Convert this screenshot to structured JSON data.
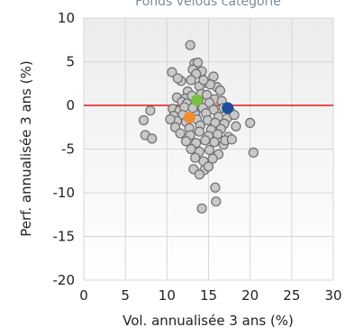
{
  "chart_data": {
    "type": "scatter",
    "title": "Fonds vélous catégorie",
    "xlabel": "Vol. annualisée 3 ans (%)",
    "ylabel": "Perf. annualisée 3 ans (%)",
    "xlim": [
      0,
      30
    ],
    "ylim": [
      -20,
      10
    ],
    "xticks": [
      "0",
      "5",
      "10",
      "15",
      "20",
      "25",
      "30"
    ],
    "yticks": [
      "-20",
      "-15",
      "-10",
      "-5",
      "0",
      "5",
      "10"
    ],
    "grid": true,
    "reference_line": {
      "y": 0,
      "color": "#e8141d"
    },
    "colors": {
      "category_points": "#c8c8c8",
      "category_outline": "#6e6e6e",
      "highlight_green": "#7ac143",
      "highlight_blue": "#1f4e9c",
      "highlight_orange": "#f28a2e"
    },
    "series": [
      {
        "color": "#c8c8c8",
        "points": [
          [
            12.8,
            6.9
          ],
          [
            13.3,
            4.8
          ],
          [
            13.7,
            4.9
          ],
          [
            13.1,
            4.1
          ],
          [
            14.2,
            3.9
          ],
          [
            13.5,
            3.6
          ],
          [
            15.6,
            3.3
          ],
          [
            11.7,
            2.8
          ],
          [
            12.9,
            2.9
          ],
          [
            14.6,
            2.6
          ],
          [
            16.0,
            2.1
          ],
          [
            10.6,
            3.8
          ],
          [
            11.3,
            3.1
          ],
          [
            13.9,
            2.2
          ],
          [
            15.2,
            2.4
          ],
          [
            12.5,
            1.6
          ],
          [
            14.1,
            1.3
          ],
          [
            16.4,
            1.7
          ],
          [
            11.2,
            0.9
          ],
          [
            12.2,
            0.8
          ],
          [
            13.0,
            1.1
          ],
          [
            13.8,
            0.6
          ],
          [
            14.8,
            1.2
          ],
          [
            15.7,
            0.7
          ],
          [
            16.6,
            0.5
          ],
          [
            11.8,
            0.4
          ],
          [
            12.4,
            0.2
          ],
          [
            15.1,
            0.3
          ],
          [
            10.7,
            -0.4
          ],
          [
            11.5,
            -0.6
          ],
          [
            12.1,
            -0.2
          ],
          [
            14.3,
            -0.3
          ],
          [
            15.6,
            -0.5
          ],
          [
            16.8,
            -0.3
          ],
          [
            17.6,
            -0.7
          ],
          [
            10.8,
            -1.2
          ],
          [
            11.9,
            -1.1
          ],
          [
            13.4,
            -1.0
          ],
          [
            14.7,
            -0.9
          ],
          [
            16.2,
            -1.3
          ],
          [
            17.2,
            -1.5
          ],
          [
            18.1,
            -1.1
          ],
          [
            11.2,
            -1.8
          ],
          [
            12.3,
            -1.9
          ],
          [
            13.6,
            -1.6
          ],
          [
            14.9,
            -1.7
          ],
          [
            15.8,
            -2.0
          ],
          [
            16.9,
            -2.1
          ],
          [
            18.3,
            -2.4
          ],
          [
            11.0,
            -2.5
          ],
          [
            12.7,
            -2.6
          ],
          [
            14.0,
            -2.3
          ],
          [
            15.3,
            -2.8
          ],
          [
            16.5,
            -2.7
          ],
          [
            11.6,
            -3.2
          ],
          [
            12.8,
            -3.4
          ],
          [
            13.9,
            -3.0
          ],
          [
            15.0,
            -3.5
          ],
          [
            16.1,
            -3.3
          ],
          [
            17.4,
            -3.6
          ],
          [
            12.3,
            -4.1
          ],
          [
            13.5,
            -4.3
          ],
          [
            14.6,
            -4.0
          ],
          [
            15.7,
            -4.2
          ],
          [
            16.8,
            -4.5
          ],
          [
            12.9,
            -5.0
          ],
          [
            13.9,
            -5.3
          ],
          [
            15.1,
            -5.1
          ],
          [
            16.2,
            -5.6
          ],
          [
            13.4,
            -6.0
          ],
          [
            14.4,
            -6.4
          ],
          [
            15.5,
            -6.1
          ],
          [
            13.2,
            -7.3
          ],
          [
            14.5,
            -7.4
          ],
          [
            13.9,
            -7.9
          ],
          [
            15.0,
            -7.0
          ],
          [
            17.0,
            -4.0
          ],
          [
            17.8,
            -3.9
          ],
          [
            20.0,
            -2.0
          ],
          [
            20.4,
            -5.4
          ],
          [
            7.2,
            -1.7
          ],
          [
            7.4,
            -3.4
          ],
          [
            8.2,
            -3.8
          ],
          [
            8.0,
            -0.6
          ],
          [
            10.4,
            -1.6
          ],
          [
            15.8,
            -9.4
          ],
          [
            15.9,
            -11.0
          ],
          [
            14.2,
            -11.8
          ],
          [
            13.1,
            -0.3
          ],
          [
            14.4,
            2.9
          ]
        ]
      },
      {
        "color": "#7ac143",
        "points": [
          [
            13.6,
            0.6
          ]
        ]
      },
      {
        "color": "#1f4e9c",
        "points": [
          [
            17.3,
            -0.3
          ]
        ]
      },
      {
        "color": "#f28a2e",
        "points": [
          [
            12.7,
            -1.4
          ]
        ]
      }
    ]
  }
}
